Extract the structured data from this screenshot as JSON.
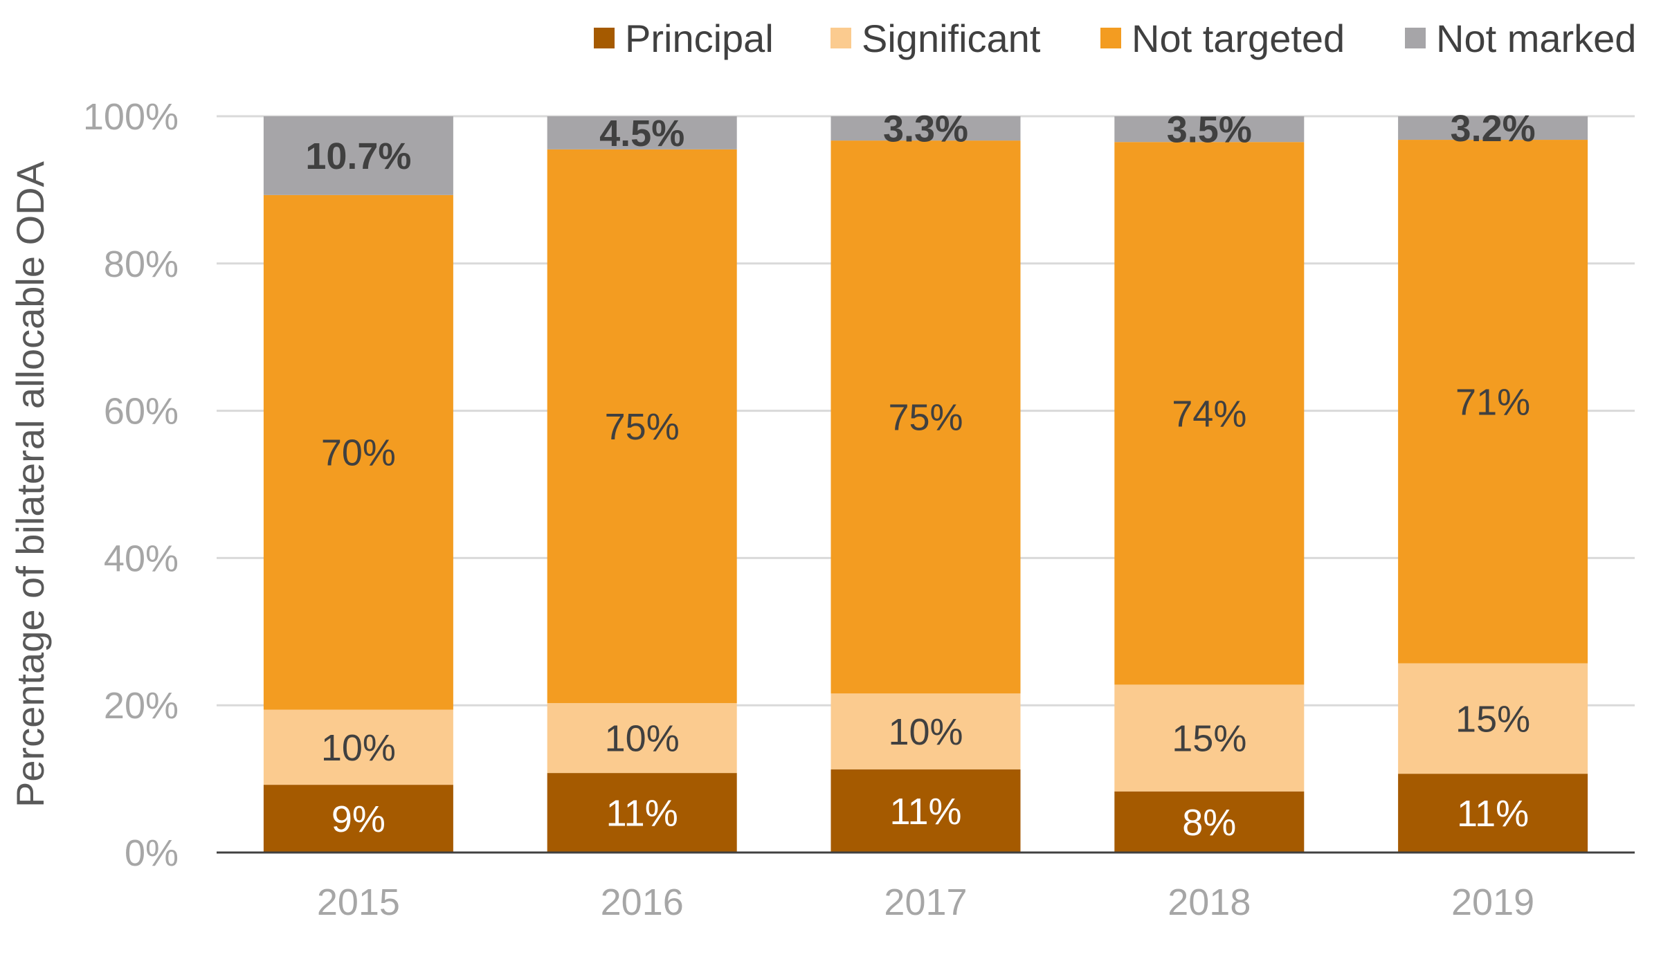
{
  "chart_data": {
    "type": "bar",
    "stacked": true,
    "title": "",
    "xlabel": "",
    "ylabel": "Percentage of bilateral allocable ODA",
    "ylim": [
      0,
      100
    ],
    "y_ticks": [
      "0%",
      "20%",
      "40%",
      "60%",
      "80%",
      "100%"
    ],
    "y_tick_values": [
      0,
      20,
      40,
      60,
      80,
      100
    ],
    "grid": true,
    "legend_position": "top-right",
    "categories": [
      "2015",
      "2016",
      "2017",
      "2018",
      "2019"
    ],
    "series": [
      {
        "name": "Principal",
        "color": "#a55a00",
        "label_color": "#ffffff",
        "values": [
          9.2,
          10.8,
          11.3,
          8.3,
          10.7
        ],
        "labels": [
          "9%",
          "11%",
          "11%",
          "8%",
          "11%"
        ]
      },
      {
        "name": "Significant",
        "color": "#fbcb8f",
        "label_color": "#404040",
        "values": [
          10.2,
          9.5,
          10.3,
          14.5,
          15.0
        ],
        "labels": [
          "10%",
          "10%",
          "10%",
          "15%",
          "15%"
        ]
      },
      {
        "name": "Not targeted",
        "color": "#f39c21",
        "label_color": "#404040",
        "values": [
          69.9,
          75.2,
          75.1,
          73.7,
          71.1
        ],
        "labels": [
          "70%",
          "75%",
          "75%",
          "74%",
          "71%"
        ]
      },
      {
        "name": "Not marked",
        "color": "#a6a5a8",
        "label_color": "#404040",
        "label_bold": true,
        "values": [
          10.7,
          4.5,
          3.3,
          3.5,
          3.2
        ],
        "labels": [
          "10.7%",
          "4.5%",
          "3.3%",
          "3.5%",
          "3.2%"
        ]
      }
    ]
  }
}
